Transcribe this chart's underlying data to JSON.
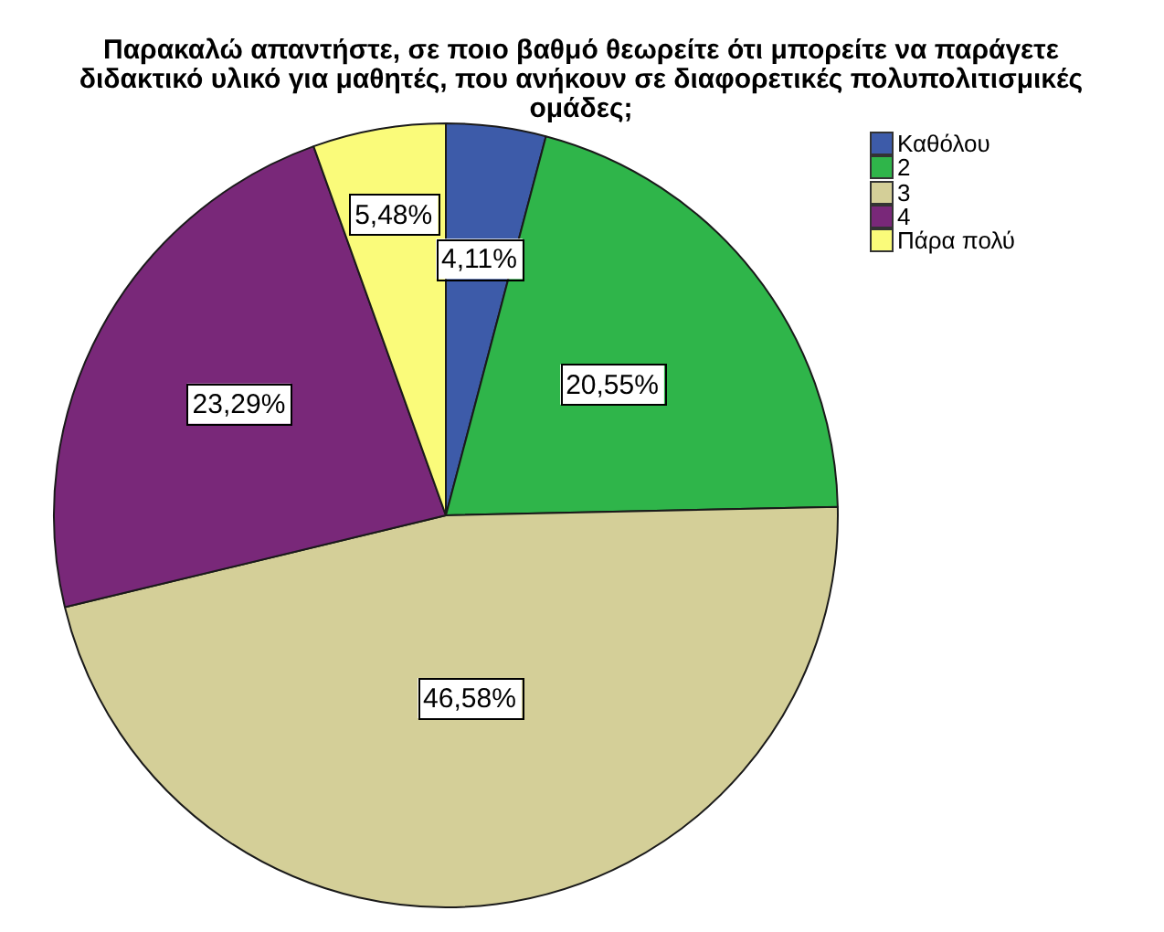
{
  "chart_data": {
    "type": "pie",
    "title": "Παρακαλώ απαντήστε, σε ποιο βαθμό θεωρείτε ότι μπορείτε να παράγετε διδακτικό υλικό για μαθητές, που ανήκουν σε διαφορετικές πολυπολιτισμικές ομάδες;",
    "categories": [
      "Καθόλου",
      "2",
      "3",
      "4",
      "Πάρα πολύ"
    ],
    "values": [
      4.11,
      20.55,
      46.58,
      23.29,
      5.48
    ],
    "value_labels": [
      "4,11%",
      "20,55%",
      "46,58%",
      "23,29%",
      "5,48%"
    ],
    "colors": [
      "#3d5ba9",
      "#2fb54a",
      "#d4cf98",
      "#792879",
      "#fafb7a"
    ],
    "legend": "top right"
  }
}
